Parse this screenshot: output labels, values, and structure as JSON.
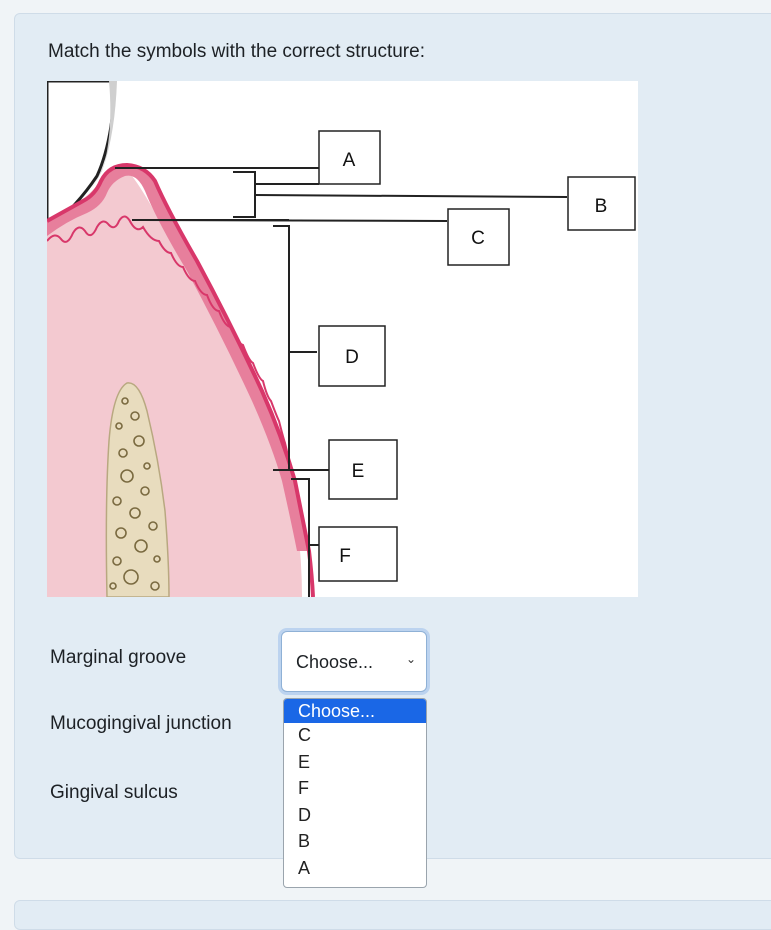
{
  "question": {
    "text": "Match the symbols with the correct structure:"
  },
  "figure": {
    "box_labels": [
      "A",
      "B",
      "C",
      "D",
      "E",
      "F"
    ]
  },
  "rows": [
    {
      "label": "Marginal groove"
    },
    {
      "label": "Mucogingival junction"
    },
    {
      "label": "Gingival sulcus"
    }
  ],
  "select": {
    "value": "Choose...",
    "options": [
      "Choose...",
      "C",
      "E",
      "F",
      "D",
      "B",
      "A"
    ]
  },
  "colors": {
    "card_bg": "#e2ecf4",
    "selected_option": "#1a67e6",
    "gingiva": "#f3c9d0",
    "gingiva_edge": "#d8376a",
    "bone": "#e8dcbe"
  }
}
